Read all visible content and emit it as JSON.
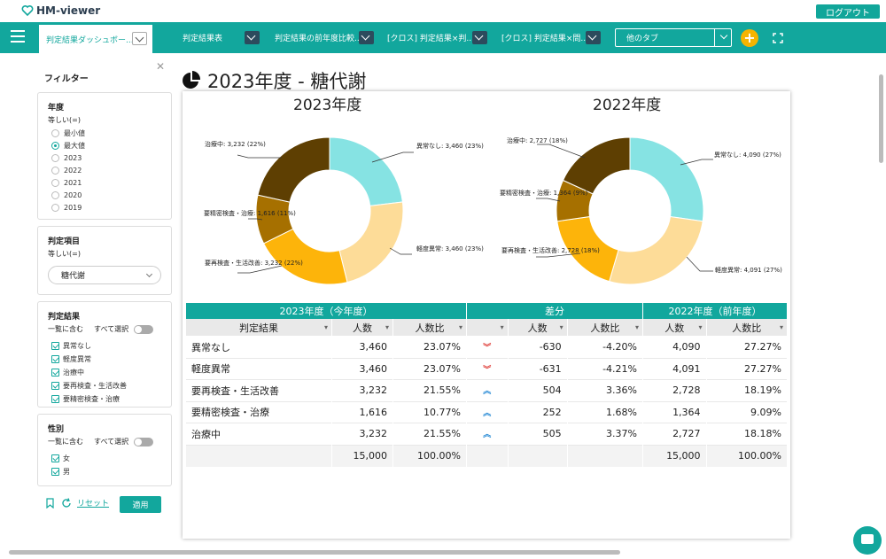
{
  "app": {
    "name": "HM-viewer",
    "logout": "ログアウト"
  },
  "nav": {
    "tabs": [
      {
        "label": "判定結果ダッシュボー..."
      },
      {
        "label": "判定結果表"
      },
      {
        "label": "判定結果の前年度比較..."
      },
      {
        "label": "[クロス] 判定結果×判..."
      },
      {
        "label": "[クロス] 判定結果×問..."
      }
    ],
    "other_tabs": "他のタブ",
    "add": "+"
  },
  "filter": {
    "title": "フィルター",
    "year": {
      "heading": "年度",
      "op": "等しい(=)",
      "options": [
        "最小値",
        "最大値",
        "2023",
        "2022",
        "2021",
        "2020",
        "2019"
      ],
      "selected": "最大値"
    },
    "item": {
      "heading": "判定項目",
      "op": "等しい(=)",
      "value": "糖代謝"
    },
    "result": {
      "heading": "判定結果",
      "mode": "一覧に含む",
      "select_all": "すべて選択",
      "options": [
        "異常なし",
        "軽度異常",
        "治療中",
        "要再検査・生活改善",
        "要精密検査・治療"
      ]
    },
    "sex": {
      "heading": "性別",
      "mode": "一覧に含む",
      "select_all": "すべて選択",
      "options": [
        "女",
        "男"
      ]
    },
    "reset": "リセット",
    "apply": "適用"
  },
  "page": {
    "title": "2023年度 - 糖代謝"
  },
  "colors": {
    "teal": "#12a79d",
    "normal": "#86e3e3",
    "mild": "#fddc98",
    "retest": "#fdb40a",
    "detail": "#a67000",
    "treat": "#5e3f02"
  },
  "chart_data": [
    {
      "type": "pie",
      "title": "2023年度",
      "categories": [
        "異常なし",
        "軽度異常",
        "要再検査・生活改善",
        "要精密検査・治療",
        "治療中"
      ],
      "values": [
        3460,
        3460,
        3232,
        1616,
        3232
      ],
      "labels": [
        "異常なし: 3,460 (23%)",
        "軽度異常: 3,460 (23%)",
        "要再検査・生活改善: 3,232 (22%)",
        "要精密検査・治療: 1,616 (11%)",
        "治療中: 3,232 (22%)"
      ]
    },
    {
      "type": "pie",
      "title": "2022年度",
      "categories": [
        "異常なし",
        "軽度異常",
        "要再検査・生活改善",
        "要精密検査・治療",
        "治療中"
      ],
      "values": [
        4090,
        4091,
        2728,
        1364,
        2727
      ],
      "labels": [
        "異常なし: 4,090 (27%)",
        "軽度異常: 4,091 (27%)",
        "要再検査・生活改善: 2,728 (18%)",
        "要精密検査・治療: 1,364 (9%)",
        "治療中: 2,727 (18%)"
      ]
    }
  ],
  "table": {
    "groups": [
      "2023年度（今年度）",
      "差分",
      "2022年度（前年度）"
    ],
    "headers": [
      "判定結果",
      "人数",
      "人数比",
      "人数",
      "人数比",
      "人数",
      "人数比"
    ],
    "rows": [
      {
        "label": "異常なし",
        "c_n": "3,460",
        "c_r": "23.07%",
        "trend": "down",
        "d_n": "-630",
        "d_r": "-4.20%",
        "p_n": "4,090",
        "p_r": "27.27%"
      },
      {
        "label": "軽度異常",
        "c_n": "3,460",
        "c_r": "23.07%",
        "trend": "down",
        "d_n": "-631",
        "d_r": "-4.21%",
        "p_n": "4,091",
        "p_r": "27.27%"
      },
      {
        "label": "要再検査・生活改善",
        "c_n": "3,232",
        "c_r": "21.55%",
        "trend": "up",
        "d_n": "504",
        "d_r": "3.36%",
        "p_n": "2,728",
        "p_r": "18.19%"
      },
      {
        "label": "要精密検査・治療",
        "c_n": "1,616",
        "c_r": "10.77%",
        "trend": "up",
        "d_n": "252",
        "d_r": "1.68%",
        "p_n": "1,364",
        "p_r": "9.09%"
      },
      {
        "label": "治療中",
        "c_n": "3,232",
        "c_r": "21.55%",
        "trend": "up",
        "d_n": "505",
        "d_r": "3.37%",
        "p_n": "2,727",
        "p_r": "18.18%"
      }
    ],
    "total": {
      "c_n": "15,000",
      "c_r": "100.00%",
      "p_n": "15,000",
      "p_r": "100.00%"
    },
    "trend_glyph": {
      "up": "≫",
      "down": "≫"
    }
  }
}
